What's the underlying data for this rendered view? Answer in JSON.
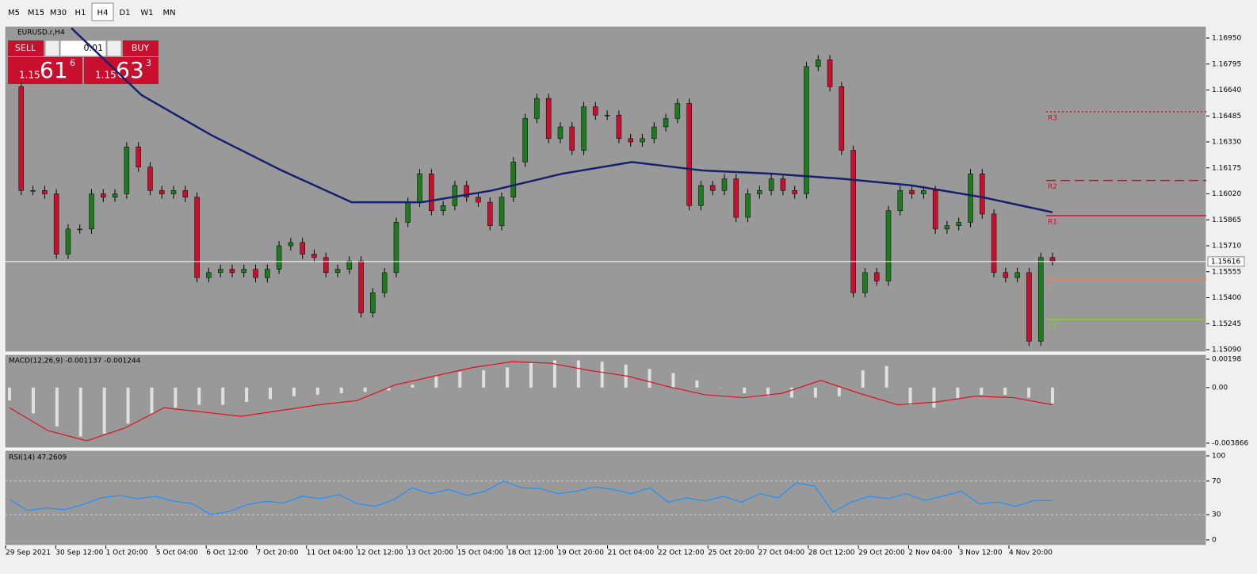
{
  "toolbar": {
    "timeframes": [
      "M5",
      "M15",
      "M30",
      "H1",
      "H4",
      "D1",
      "W1",
      "MN"
    ],
    "selected": 4
  },
  "symbol": "EURUSD.r,H4",
  "trade_panel": {
    "sell": "SELL",
    "buy": "BUY",
    "lot": "0.01",
    "bid": {
      "big": "1.15",
      "pips": "61",
      "frac": "6"
    },
    "ask": {
      "big": "1.15",
      "pips": "63",
      "frac": "3"
    }
  },
  "price_chart": {
    "ylim": [
      1.15076,
      1.17021
    ],
    "yticks": [
      {
        "value": 1.1695,
        "label": "1.16950"
      },
      {
        "value": 1.16795,
        "label": "1.16795"
      },
      {
        "value": 1.1664,
        "label": "1.16640"
      },
      {
        "value": 1.16485,
        "label": "1.16485"
      },
      {
        "value": 1.1633,
        "label": "1.16330"
      },
      {
        "value": 1.16175,
        "label": "1.16175"
      },
      {
        "value": 1.1602,
        "label": "1.16020"
      },
      {
        "value": 1.15865,
        "label": "1.15865"
      },
      {
        "value": 1.1571,
        "label": "1.15710"
      },
      {
        "value": 1.15555,
        "label": "1.15555"
      },
      {
        "value": 1.154,
        "label": "1.15400"
      },
      {
        "value": 1.15245,
        "label": "1.15245"
      },
      {
        "value": 1.1509,
        "label": "1.15090"
      }
    ],
    "current_price": 1.15616,
    "closes": [
      1.1666,
      1.1604,
      1.1604,
      1.1602,
      1.1566,
      1.1581,
      1.1581,
      1.1602,
      1.16,
      1.1602,
      1.163,
      1.1618,
      1.1604,
      1.1602,
      1.1604,
      1.16,
      1.1552,
      1.1555,
      1.1557,
      1.1555,
      1.1557,
      1.1552,
      1.1557,
      1.1571,
      1.1573,
      1.1566,
      1.1564,
      1.1555,
      1.1557,
      1.1562,
      1.1531,
      1.1543,
      1.1555,
      1.1585,
      1.1597,
      1.1614,
      1.1592,
      1.1595,
      1.1607,
      1.16,
      1.1597,
      1.1583,
      1.16,
      1.1621,
      1.1647,
      1.1659,
      1.1635,
      1.1642,
      1.1628,
      1.1654,
      1.1649,
      1.1649,
      1.1635,
      1.1633,
      1.1635,
      1.1642,
      1.1647,
      1.1656,
      1.1595,
      1.1607,
      1.1604,
      1.1611,
      1.1588,
      1.1602,
      1.1604,
      1.1611,
      1.1604,
      1.1602,
      1.1678,
      1.1682,
      1.1666,
      1.1628,
      1.1543,
      1.1555,
      1.155,
      1.1592,
      1.1604,
      1.1602,
      1.1604,
      1.1581,
      1.1583,
      1.1585,
      1.1614,
      1.159,
      1.1555,
      1.1552,
      1.1555,
      1.1514,
      1.1564,
      1.1562
    ],
    "ma": [
      1.1701,
      1.1661,
      1.1637,
      1.1616,
      1.1597,
      1.1597,
      1.1604,
      1.1614,
      1.1621,
      1.1616,
      1.1614,
      1.1611,
      1.1607,
      1.16,
      1.1591
    ],
    "pivots": [
      {
        "name": "R3",
        "value": 1.1651,
        "color": "#c8102e",
        "dash": "2,3"
      },
      {
        "name": "R2",
        "value": 1.161,
        "color": "#c8102e",
        "dash": "12,6"
      },
      {
        "name": "R1",
        "value": 1.1589,
        "color": "#c8102e",
        "dash": ""
      },
      {
        "name": "P",
        "value": 1.1551,
        "color": "#f08060",
        "dash": ""
      },
      {
        "name": "S1",
        "value": 1.1527,
        "color": "#7fd21e",
        "dash": ""
      }
    ]
  },
  "macd": {
    "label": "MACD(12,26,9) -0.001137 -0.001244",
    "ylim": [
      -0.0042,
      0.00231
    ],
    "yticks": [
      0.00198,
      {
        "value": 0,
        "label": "0.00"
      },
      -0.003866
    ],
    "histogram": [
      -0.0009,
      -0.0018,
      -0.0027,
      -0.0034,
      -0.0032,
      -0.0025,
      -0.0018,
      -0.0014,
      -0.0012,
      -0.0012,
      -0.001,
      -0.0008,
      -0.0006,
      -0.0005,
      -0.0004,
      -0.0003,
      -0.0002,
      0.0002,
      0.0008,
      0.0011,
      0.0012,
      0.0014,
      0.0017,
      0.0019,
      0.0019,
      0.0018,
      0.0016,
      0.0013,
      0.001,
      0.0005,
      0.0,
      -0.0004,
      -0.0006,
      -0.0007,
      -0.0007,
      -0.0006,
      0.0012,
      0.0015,
      -0.0012,
      -0.0014,
      -0.0008,
      -0.0005,
      -0.0005,
      -0.0007,
      -0.0011
    ],
    "signal": [
      -0.0014,
      -0.003,
      -0.0037,
      -0.0028,
      -0.0014,
      -0.0017,
      -0.002,
      -0.0016,
      -0.0012,
      -0.0009,
      0.0002,
      0.0008,
      0.0014,
      0.0018,
      0.0017,
      0.0012,
      0.0008,
      0.0001,
      -0.0005,
      -0.0007,
      -0.0004,
      0.0005,
      -0.0004,
      -0.0012,
      -0.001,
      -0.0006,
      -0.0007,
      -0.0012
    ]
  },
  "rsi": {
    "label": "RSI(14) 47.2609",
    "ylim": [
      -6.6,
      106.6
    ],
    "yticks": [
      100,
      70,
      30,
      0
    ],
    "values": [
      48,
      35,
      38,
      36,
      42,
      50,
      53,
      49,
      52,
      46,
      43,
      30,
      34,
      42,
      46,
      44,
      52,
      49,
      54,
      43,
      40,
      48,
      62,
      55,
      60,
      53,
      58,
      70,
      62,
      61,
      55,
      58,
      63,
      60,
      55,
      62,
      45,
      50,
      46,
      52,
      45,
      55,
      50,
      68,
      64,
      33,
      45,
      52,
      49,
      55,
      47,
      52,
      58,
      43,
      45,
      40,
      47,
      47
    ]
  },
  "x_labels": [
    "29 Sep 2021",
    "30 Sep 12:00",
    "1 Oct 20:00",
    "5 Oct 04:00",
    "6 Oct 12:00",
    "7 Oct 20:00",
    "11 Oct 04:00",
    "12 Oct 12:00",
    "13 Oct 20:00",
    "15 Oct 04:00",
    "18 Oct 12:00",
    "19 Oct 20:00",
    "21 Oct 04:00",
    "22 Oct 12:00",
    "25 Oct 20:00",
    "27 Oct 04:00",
    "28 Oct 12:00",
    "29 Oct 20:00",
    "2 Nov 04:00",
    "3 Nov 12:00",
    "4 Nov 20:00"
  ]
}
